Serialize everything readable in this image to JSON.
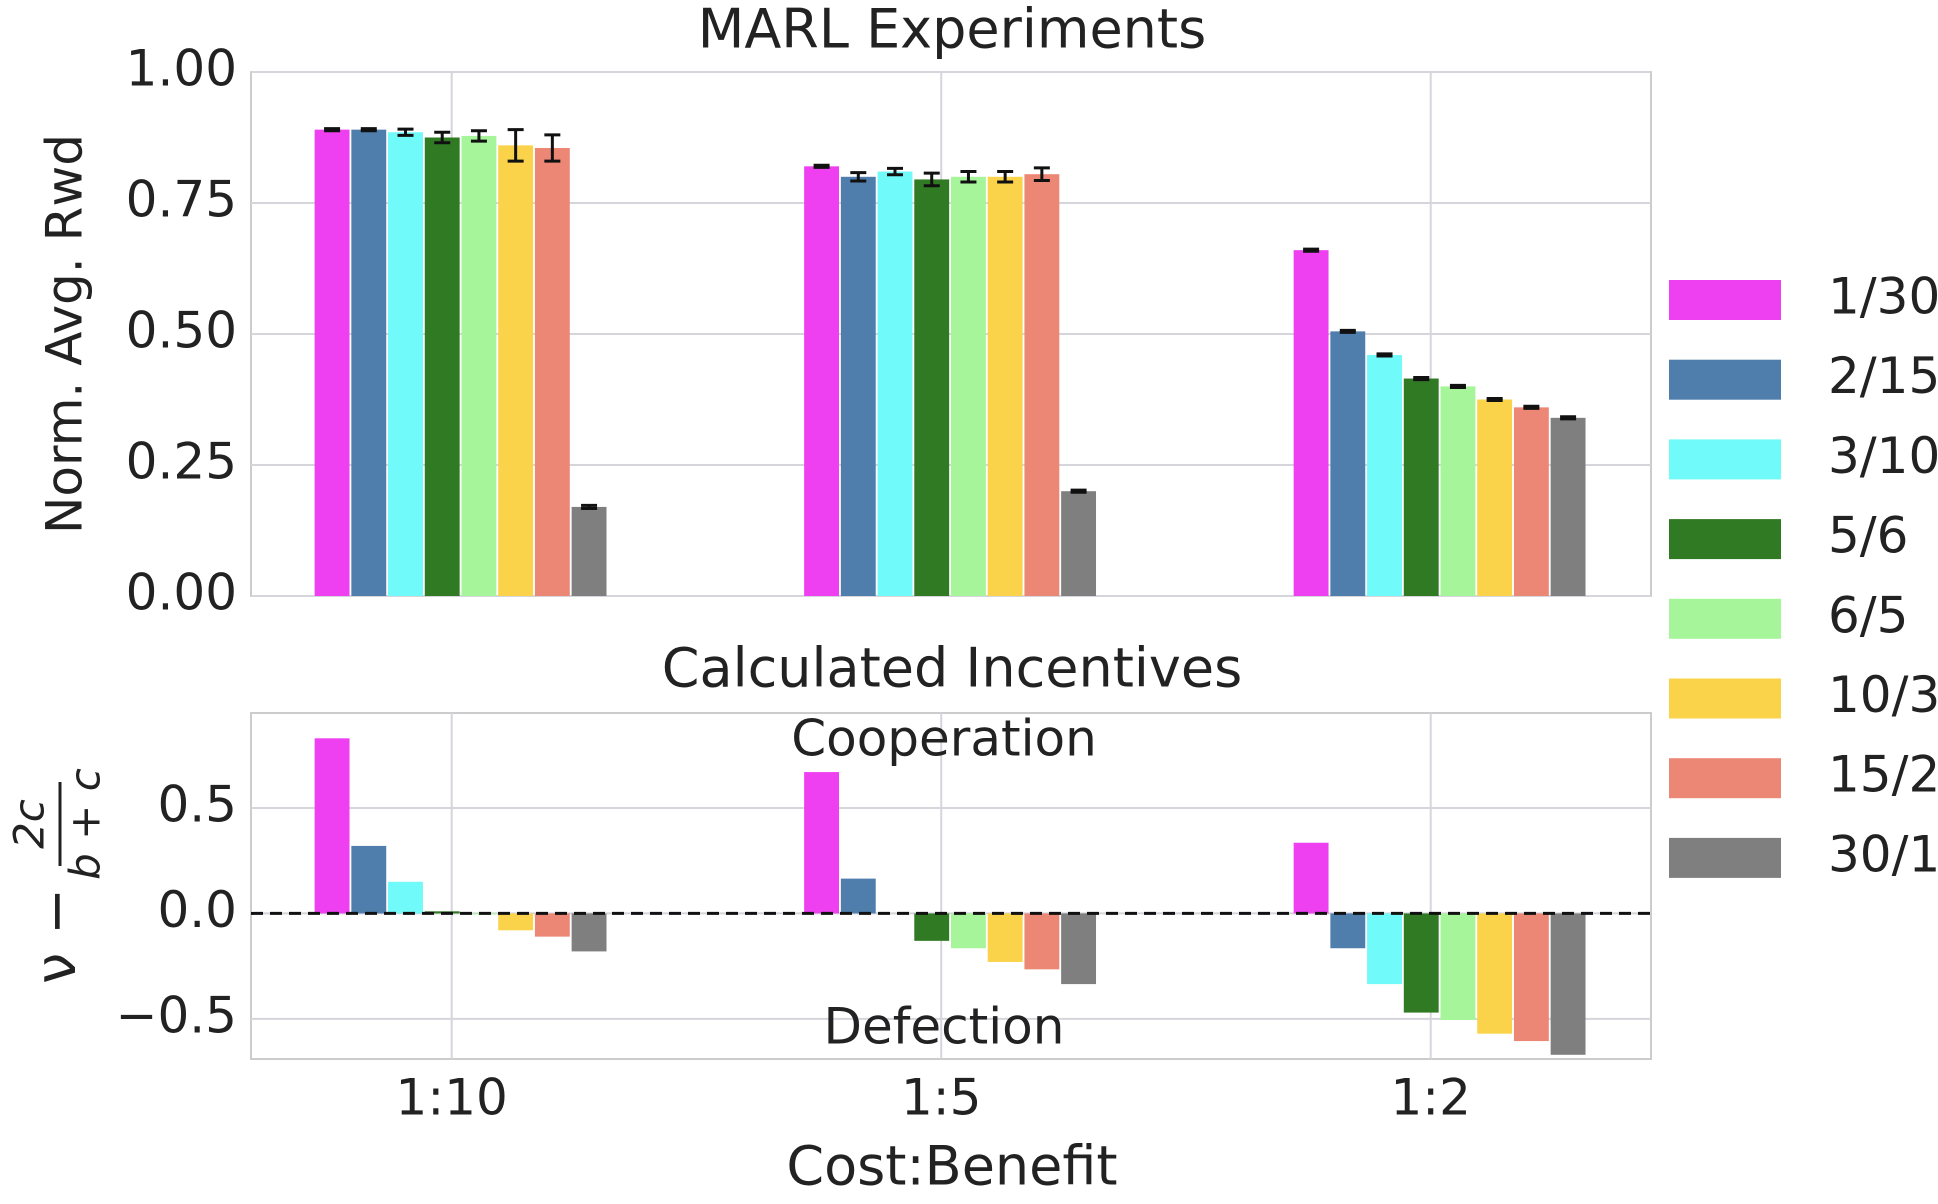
{
  "chart_data": [
    {
      "type": "bar",
      "title": "MARL Experiments",
      "ylabel": "Norm. Avg. Rwd",
      "ylim": [
        0,
        1.0
      ],
      "yticks": [
        {
          "value": 0,
          "label": "0.00"
        },
        {
          "value": 0.25,
          "label": "0.25"
        },
        {
          "value": 0.5,
          "label": "0.50"
        },
        {
          "value": 0.75,
          "label": "0.75"
        },
        {
          "value": 1.0,
          "label": "1.00"
        }
      ],
      "grid": true,
      "legend": "right",
      "series": [
        {
          "name": "1/30",
          "color": "#ee3ff0",
          "values": [
            0.89,
            0.82,
            0.66
          ],
          "errors": [
            0.002,
            0.002,
            0.002
          ]
        },
        {
          "name": "2/15",
          "color": "#4f7ead",
          "values": [
            0.89,
            0.8,
            0.505
          ],
          "errors": [
            0.002,
            0.008,
            0.002
          ]
        },
        {
          "name": "3/10",
          "color": "#70fafa",
          "values": [
            0.885,
            0.81,
            0.46
          ],
          "errors": [
            0.006,
            0.006,
            0.002
          ]
        },
        {
          "name": "5/6",
          "color": "#307a24",
          "values": [
            0.875,
            0.795,
            0.415
          ],
          "errors": [
            0.01,
            0.012,
            0.002
          ]
        },
        {
          "name": "6/5",
          "color": "#a6f59a",
          "values": [
            0.878,
            0.8,
            0.4
          ],
          "errors": [
            0.01,
            0.01,
            0.002
          ]
        },
        {
          "name": "10/3",
          "color": "#fad34a",
          "values": [
            0.86,
            0.8,
            0.375
          ],
          "errors": [
            0.03,
            0.01,
            0.002
          ]
        },
        {
          "name": "15/2",
          "color": "#ec8776",
          "values": [
            0.855,
            0.805,
            0.36
          ],
          "errors": [
            0.025,
            0.012,
            0.002
          ]
        },
        {
          "name": "30/1",
          "color": "#7f7f7f",
          "values": [
            0.17,
            0.2,
            0.34
          ],
          "errors": [
            0.003,
            0.002,
            0.002
          ]
        }
      ]
    },
    {
      "type": "bar",
      "title": "Calculated Incentives",
      "ylabel": {
        "text": "ν −",
        "numerator": "2c",
        "denominator": "b + c"
      },
      "xlabel": "Cost:Benefit",
      "categories": [
        "1:10",
        "1:5",
        "1:2"
      ],
      "annotations": [
        "Cooperation",
        "Defection"
      ],
      "ylim": [
        -0.69,
        0.95
      ],
      "yticks": [
        {
          "value": -0.5,
          "label": "−0.5"
        },
        {
          "value": 0,
          "label": "0.0"
        },
        0.5
      ],
      "grid": true,
      "series": [
        {
          "color": "#ee3ff0",
          "values": [
            0.83,
            0.67,
            0.335
          ]
        },
        {
          "color": "#4f7ead",
          "values": [
            0.32,
            0.165,
            -0.165
          ]
        },
        {
          "color": "#70fafa",
          "values": [
            0.15,
            0.0,
            -0.335
          ]
        },
        {
          "color": "#307a24",
          "values": [
            0.01,
            -0.13,
            -0.47
          ]
        },
        {
          "color": "#a6f59a",
          "values": [
            -0.005,
            -0.165,
            -0.505
          ]
        },
        {
          "color": "#fad34a",
          "values": [
            -0.08,
            -0.23,
            -0.57
          ]
        },
        {
          "color": "#ec8776",
          "values": [
            -0.11,
            -0.265,
            -0.605
          ]
        },
        {
          "color": "#7f7f7f",
          "values": [
            -0.18,
            -0.335,
            -0.67
          ]
        }
      ]
    }
  ]
}
